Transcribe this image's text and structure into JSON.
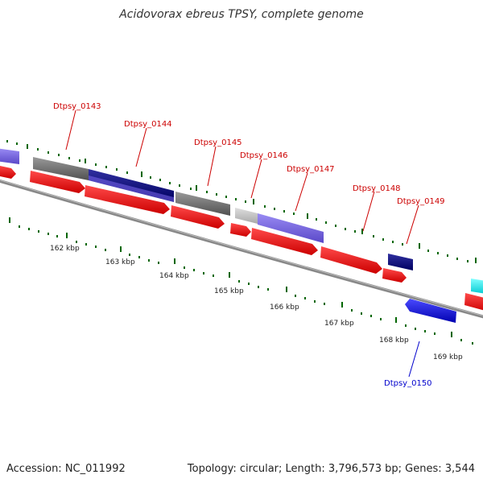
{
  "title": "Acidovorax ebreus TPSY, complete genome",
  "footer": {
    "accession": "Accession: NC_011992",
    "summary": "Topology: circular; Length: 3,796,573 bp; Genes: 3,544"
  },
  "scale_labels": [
    "162 kbp",
    "163 kbp",
    "164 kbp",
    "165 kbp",
    "166 kbp",
    "167 kbp",
    "168 kbp",
    "169 kbp"
  ],
  "gene_labels": [
    {
      "text": "Dtpsy_0143",
      "color": "#cc0000"
    },
    {
      "text": "Dtpsy_0144",
      "color": "#cc0000"
    },
    {
      "text": "Dtpsy_0145",
      "color": "#cc0000"
    },
    {
      "text": "Dtpsy_0146",
      "color": "#cc0000"
    },
    {
      "text": "Dtpsy_0147",
      "color": "#cc0000"
    },
    {
      "text": "Dtpsy_0148",
      "color": "#cc0000"
    },
    {
      "text": "Dtpsy_0149",
      "color": "#cc0000"
    },
    {
      "text": "Dtpsy_0150",
      "color": "#0000cc"
    }
  ],
  "colors": {
    "cds": "#ff0000",
    "backbone": "#888888",
    "tick": "#006600",
    "slate": "#7b68ee",
    "navy": "#000080",
    "gray": "#707070",
    "lightgray": "#c0c0c0",
    "blue": "#0000ff",
    "cyan": "#00ffff"
  }
}
